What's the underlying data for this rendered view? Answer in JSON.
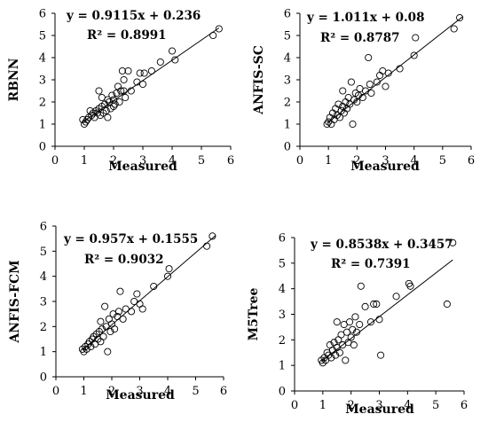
{
  "chart_data": [
    {
      "type": "scatter",
      "ylabel": "RBNN",
      "xlabel": "Measured",
      "equation": "y = 0.9115x + 0.236",
      "r2_text": "R² = 0.8991",
      "fit": {
        "slope": 0.9115,
        "intercept": 0.236,
        "x_range": [
          0.95,
          5.6
        ]
      },
      "xlim": [
        0,
        6
      ],
      "ylim": [
        0,
        6
      ],
      "x_ticks": [
        "0",
        "1",
        "2",
        "3",
        "4",
        "5",
        "6"
      ],
      "y_ticks": [
        "0",
        "1",
        "2",
        "3",
        "4",
        "5",
        "6"
      ],
      "points": [
        [
          0.95,
          1.2
        ],
        [
          1.0,
          1.0
        ],
        [
          1.05,
          1.1
        ],
        [
          1.1,
          1.2
        ],
        [
          1.15,
          1.3
        ],
        [
          1.2,
          1.6
        ],
        [
          1.25,
          1.4
        ],
        [
          1.3,
          1.5
        ],
        [
          1.35,
          1.3
        ],
        [
          1.4,
          1.6
        ],
        [
          1.45,
          1.5
        ],
        [
          1.5,
          1.7
        ],
        [
          1.5,
          2.5
        ],
        [
          1.55,
          1.4
        ],
        [
          1.6,
          1.8
        ],
        [
          1.6,
          2.2
        ],
        [
          1.65,
          1.5
        ],
        [
          1.7,
          1.9
        ],
        [
          1.75,
          1.6
        ],
        [
          1.8,
          2.1
        ],
        [
          1.8,
          1.3
        ],
        [
          1.85,
          2.0
        ],
        [
          1.9,
          1.7
        ],
        [
          1.95,
          2.3
        ],
        [
          2.0,
          1.8
        ],
        [
          2.0,
          2.1
        ],
        [
          2.05,
          1.9
        ],
        [
          2.1,
          2.4
        ],
        [
          2.15,
          2.7
        ],
        [
          2.2,
          2.0
        ],
        [
          2.25,
          2.5
        ],
        [
          2.3,
          3.4
        ],
        [
          2.35,
          3.0
        ],
        [
          2.35,
          2.5
        ],
        [
          2.4,
          2.2
        ],
        [
          2.5,
          3.4
        ],
        [
          2.6,
          2.5
        ],
        [
          2.8,
          2.9
        ],
        [
          2.9,
          3.3
        ],
        [
          3.0,
          2.8
        ],
        [
          3.05,
          3.3
        ],
        [
          3.3,
          3.4
        ],
        [
          3.6,
          3.8
        ],
        [
          4.0,
          4.3
        ],
        [
          4.1,
          3.9
        ],
        [
          5.4,
          5.0
        ],
        [
          5.6,
          5.3
        ]
      ]
    },
    {
      "type": "scatter",
      "ylabel": "ANFIS-SC",
      "xlabel": "Measured",
      "equation": "y = 1.011x + 0.08",
      "r2_text": "R² = 0.8787",
      "fit": {
        "slope": 1.011,
        "intercept": 0.08,
        "x_range": [
          0.95,
          5.7
        ]
      },
      "xlim": [
        0,
        6
      ],
      "ylim": [
        0,
        6
      ],
      "x_ticks": [
        "0",
        "1",
        "2",
        "3",
        "4",
        "5",
        "6"
      ],
      "y_ticks": [
        "0",
        "1",
        "2",
        "3",
        "4",
        "5",
        "6"
      ],
      "points": [
        [
          0.95,
          1.0
        ],
        [
          1.0,
          1.1
        ],
        [
          1.05,
          1.3
        ],
        [
          1.1,
          1.0
        ],
        [
          1.15,
          1.5
        ],
        [
          1.2,
          1.2
        ],
        [
          1.25,
          1.7
        ],
        [
          1.3,
          1.4
        ],
        [
          1.35,
          1.9
        ],
        [
          1.4,
          1.3
        ],
        [
          1.45,
          1.6
        ],
        [
          1.5,
          1.8
        ],
        [
          1.5,
          2.5
        ],
        [
          1.55,
          1.5
        ],
        [
          1.6,
          2.0
        ],
        [
          1.65,
          1.7
        ],
        [
          1.7,
          2.2
        ],
        [
          1.75,
          1.9
        ],
        [
          1.8,
          2.9
        ],
        [
          1.85,
          1.0
        ],
        [
          1.9,
          2.1
        ],
        [
          1.95,
          2.4
        ],
        [
          2.0,
          2.0
        ],
        [
          2.05,
          2.3
        ],
        [
          2.1,
          2.6
        ],
        [
          2.2,
          2.2
        ],
        [
          2.3,
          2.5
        ],
        [
          2.4,
          4.0
        ],
        [
          2.45,
          2.8
        ],
        [
          2.5,
          2.4
        ],
        [
          2.7,
          2.9
        ],
        [
          2.8,
          3.2
        ],
        [
          2.9,
          3.4
        ],
        [
          3.0,
          2.7
        ],
        [
          3.1,
          3.3
        ],
        [
          3.5,
          3.5
        ],
        [
          4.0,
          4.1
        ],
        [
          4.05,
          4.9
        ],
        [
          5.4,
          5.3
        ],
        [
          5.6,
          5.8
        ]
      ]
    },
    {
      "type": "scatter",
      "ylabel": "ANFIS-FCM",
      "xlabel": "Measured",
      "equation": "y = 0.957x + 0.1555",
      "r2_text": "R² = 0.9032",
      "fit": {
        "slope": 0.957,
        "intercept": 0.1555,
        "x_range": [
          0.95,
          5.7
        ]
      },
      "xlim": [
        0,
        6
      ],
      "ylim": [
        0,
        6
      ],
      "x_ticks": [
        "0",
        "1",
        "2",
        "3",
        "4",
        "5",
        "6"
      ],
      "y_ticks": [
        "0",
        "1",
        "2",
        "3",
        "4",
        "5",
        "6"
      ],
      "points": [
        [
          0.95,
          1.1
        ],
        [
          1.0,
          1.0
        ],
        [
          1.05,
          1.2
        ],
        [
          1.1,
          1.1
        ],
        [
          1.15,
          1.3
        ],
        [
          1.2,
          1.4
        ],
        [
          1.25,
          1.2
        ],
        [
          1.3,
          1.5
        ],
        [
          1.35,
          1.6
        ],
        [
          1.4,
          1.3
        ],
        [
          1.45,
          1.7
        ],
        [
          1.5,
          1.5
        ],
        [
          1.55,
          1.8
        ],
        [
          1.6,
          1.4
        ],
        [
          1.6,
          2.2
        ],
        [
          1.65,
          1.9
        ],
        [
          1.7,
          1.6
        ],
        [
          1.75,
          2.8
        ],
        [
          1.8,
          2.0
        ],
        [
          1.85,
          1.0
        ],
        [
          1.9,
          2.3
        ],
        [
          1.95,
          1.8
        ],
        [
          2.0,
          2.1
        ],
        [
          2.05,
          2.5
        ],
        [
          2.1,
          1.9
        ],
        [
          2.2,
          2.4
        ],
        [
          2.25,
          2.6
        ],
        [
          2.3,
          3.4
        ],
        [
          2.4,
          2.3
        ],
        [
          2.5,
          2.7
        ],
        [
          2.7,
          2.6
        ],
        [
          2.8,
          3.0
        ],
        [
          2.9,
          3.3
        ],
        [
          3.0,
          2.9
        ],
        [
          3.1,
          2.7
        ],
        [
          3.5,
          3.6
        ],
        [
          4.0,
          4.0
        ],
        [
          4.05,
          4.3
        ],
        [
          5.4,
          5.2
        ],
        [
          5.6,
          5.6
        ]
      ]
    },
    {
      "type": "scatter",
      "ylabel": "M5Tree",
      "xlabel": "Measured",
      "equation": "y = 0.8538x + 0.3457",
      "r2_text": "R² = 0.7391",
      "fit": {
        "slope": 0.8538,
        "intercept": 0.3457,
        "x_range": [
          0.95,
          5.6
        ]
      },
      "xlim": [
        0,
        6
      ],
      "ylim": [
        0,
        6
      ],
      "x_ticks": [
        "0",
        "1",
        "2",
        "3",
        "4",
        "5",
        "6"
      ],
      "y_ticks": [
        "0",
        "1",
        "2",
        "3",
        "4",
        "5",
        "6"
      ],
      "points": [
        [
          0.95,
          1.2
        ],
        [
          1.0,
          1.1
        ],
        [
          1.05,
          1.3
        ],
        [
          1.1,
          1.2
        ],
        [
          1.15,
          1.5
        ],
        [
          1.2,
          1.4
        ],
        [
          1.25,
          1.8
        ],
        [
          1.3,
          1.3
        ],
        [
          1.35,
          1.6
        ],
        [
          1.4,
          1.9
        ],
        [
          1.45,
          1.4
        ],
        [
          1.5,
          1.7
        ],
        [
          1.5,
          2.7
        ],
        [
          1.55,
          2.0
        ],
        [
          1.6,
          1.5
        ],
        [
          1.65,
          2.2
        ],
        [
          1.7,
          1.8
        ],
        [
          1.75,
          2.6
        ],
        [
          1.8,
          1.2
        ],
        [
          1.85,
          2.3
        ],
        [
          1.9,
          1.9
        ],
        [
          1.95,
          2.7
        ],
        [
          2.0,
          2.1
        ],
        [
          2.05,
          2.4
        ],
        [
          2.1,
          1.8
        ],
        [
          2.15,
          2.9
        ],
        [
          2.2,
          2.3
        ],
        [
          2.3,
          2.6
        ],
        [
          2.35,
          4.1
        ],
        [
          2.5,
          3.3
        ],
        [
          2.7,
          2.7
        ],
        [
          2.8,
          3.4
        ],
        [
          2.9,
          3.4
        ],
        [
          3.0,
          2.8
        ],
        [
          3.05,
          1.4
        ],
        [
          3.6,
          3.7
        ],
        [
          4.05,
          4.2
        ],
        [
          4.1,
          4.1
        ],
        [
          5.4,
          3.4
        ],
        [
          5.6,
          5.8
        ]
      ]
    }
  ]
}
